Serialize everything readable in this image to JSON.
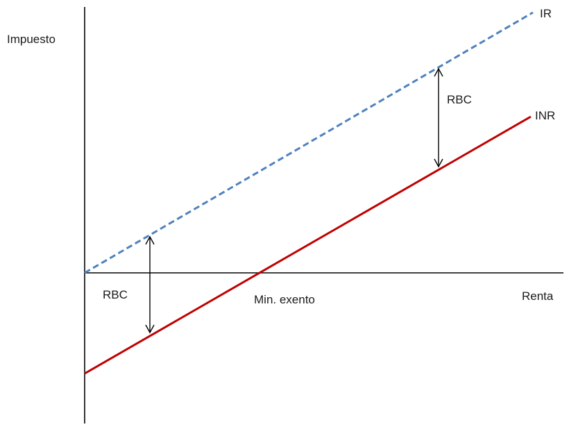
{
  "axes": {
    "y_label": "Impuesto",
    "x_label": "Renta"
  },
  "lines": {
    "ir_label": "IR",
    "inr_label": "INR",
    "ir_color": "#4f81bd",
    "inr_color": "#c00000"
  },
  "annotations": {
    "gap_left_label": "RBC",
    "gap_right_label": "RBC",
    "threshold_label": "Min. exento"
  }
}
